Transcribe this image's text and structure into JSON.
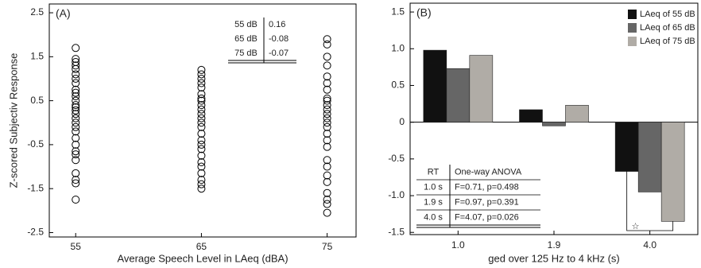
{
  "chart_data": [
    {
      "type": "scatter",
      "panel_label": "(A)",
      "x_label": "Average Speech Level in LAeq (dBA)",
      "y_label": "Z-scored Subjectiv Response",
      "x": [
        55,
        55,
        55,
        55,
        55,
        55,
        55,
        55,
        55,
        55,
        55,
        55,
        55,
        55,
        55,
        55,
        55,
        55,
        55,
        55,
        55,
        55,
        55,
        55,
        55,
        55,
        55,
        55,
        55,
        65,
        65,
        65,
        65,
        65,
        65,
        65,
        65,
        65,
        65,
        65,
        65,
        65,
        65,
        65,
        65,
        65,
        65,
        65,
        65,
        65,
        65,
        65,
        65,
        65,
        75,
        75,
        75,
        75,
        75,
        75,
        75,
        75,
        75,
        75,
        75,
        75,
        75,
        75,
        75,
        75,
        75,
        75,
        75,
        75,
        75,
        75,
        75,
        75,
        75,
        75
      ],
      "values": [
        1.7,
        1.45,
        1.38,
        1.3,
        1.22,
        1.1,
        1.0,
        0.9,
        0.75,
        0.68,
        0.6,
        0.5,
        0.4,
        0.35,
        0.28,
        0.2,
        0.1,
        0.0,
        -0.1,
        -0.2,
        -0.35,
        -0.5,
        -0.65,
        -0.72,
        -0.85,
        -1.15,
        -1.3,
        -1.38,
        -1.75,
        1.2,
        1.1,
        1.0,
        0.9,
        0.8,
        0.65,
        0.55,
        0.5,
        0.4,
        0.3,
        0.2,
        0.1,
        0.0,
        -0.1,
        -0.25,
        -0.4,
        -0.5,
        -0.6,
        -0.75,
        -0.9,
        -1.0,
        -1.15,
        -1.3,
        -1.4,
        -1.5,
        1.9,
        1.78,
        1.5,
        1.3,
        1.05,
        0.9,
        0.75,
        0.55,
        0.5,
        0.4,
        0.3,
        0.2,
        0.1,
        0.0,
        -0.1,
        -0.25,
        -0.4,
        -0.55,
        -0.85,
        -1.0,
        -1.2,
        -1.35,
        -1.6,
        -1.75,
        -1.85,
        -2.05
      ],
      "color": "#000000",
      "xlim": [
        52.9,
        77.3
      ],
      "xticks": [
        55,
        65,
        75
      ],
      "ylim": [
        -2.6,
        2.7
      ],
      "yticks": [
        2.5,
        1.5,
        0.5,
        -0.5,
        -1.5,
        -2.5
      ],
      "table": {
        "rows": [
          [
            "55 dB",
            "0.16"
          ],
          [
            "65 dB",
            "-0.08"
          ],
          [
            "75 dB",
            "-0.07"
          ]
        ]
      }
    },
    {
      "type": "bar",
      "panel_label": "(B)",
      "x_label": "ged over 125 Hz to 4 kHz (s)",
      "categories": [
        "1.0",
        "1.9",
        "4.0"
      ],
      "series": [
        {
          "name": "LAeq of 55 dB",
          "color": "#111111",
          "values": [
            0.98,
            0.17,
            -0.67
          ]
        },
        {
          "name": "LAeq of 65 dB",
          "color": "#666666",
          "values": [
            0.73,
            -0.05,
            -0.95
          ]
        },
        {
          "name": "LAeq of 75 dB",
          "color": "#b0aca6",
          "values": [
            0.91,
            0.23,
            -1.35
          ]
        }
      ],
      "ylim": [
        -1.53,
        1.62
      ],
      "yticks": [
        1.5,
        {
          "value": 1,
          "label": "1.0"
        },
        0.5,
        0,
        -0.5,
        {
          "value": -1,
          "label": "-1.0"
        },
        -1.5
      ],
      "annotation": "☆",
      "table": {
        "header": [
          "RT",
          "One-way ANOVA"
        ],
        "rows": [
          [
            "1.0 s",
            "F=0.71, p=0.498"
          ],
          [
            "1.9 s",
            "F=0.97, p=0.391"
          ],
          [
            "4.0 s",
            "F=4.07, p=0.026"
          ]
        ]
      }
    }
  ]
}
